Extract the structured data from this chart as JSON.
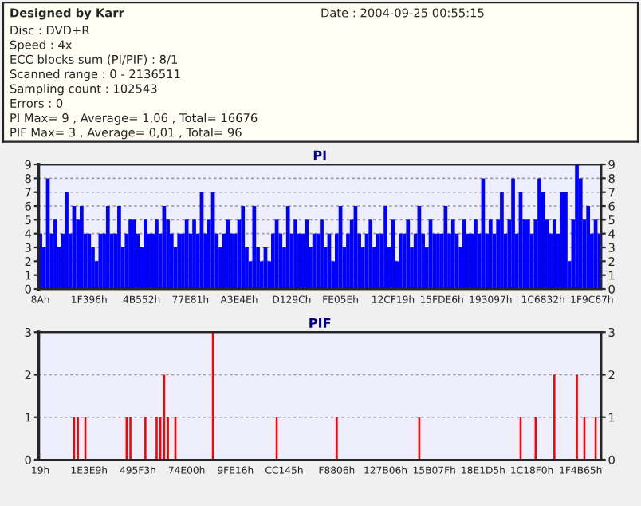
{
  "chart_data": [
    {
      "type": "other",
      "title": "Designed by Karr",
      "annotations": [
        "Date : 2004-09-25 00:55:15",
        "Disc : DVD+R",
        "Speed : 4x",
        "ECC blocks sum (PI/PIF) : 8/1",
        "Scanned range : 0 - 2136511",
        "Sampling count : 102543",
        "Errors : 0",
        "PI Max= 9 , Average= 1,06 , Total= 16676",
        "PIF Max= 3 , Average= 0,01 , Total= 96"
      ]
    },
    {
      "type": "bar",
      "title": "PI",
      "color": "#0000ff",
      "grid": "y",
      "ylim": [
        0,
        9
      ],
      "y2lim": [
        0,
        9
      ],
      "yticks": [
        0,
        1,
        2,
        3,
        4,
        5,
        6,
        7,
        8,
        9
      ],
      "y2ticks": [
        0,
        1,
        2,
        3,
        4,
        5,
        6,
        7,
        8,
        9
      ],
      "categories": [
        "8Ah",
        null,
        null,
        null,
        null,
        null,
        null,
        null,
        null,
        null,
        null,
        null,
        null,
        "1F396h",
        null,
        null,
        null,
        null,
        null,
        null,
        null,
        null,
        null,
        null,
        null,
        null,
        null,
        "4B552h",
        null,
        null,
        null,
        null,
        null,
        null,
        null,
        null,
        null,
        null,
        null,
        null,
        "77E81h",
        null,
        null,
        null,
        null,
        null,
        null,
        null,
        null,
        null,
        null,
        null,
        null,
        "A3E4Eh",
        null,
        null,
        null,
        null,
        null,
        null,
        null,
        null,
        null,
        null,
        null,
        null,
        null,
        "D129Ch",
        null,
        null,
        null,
        null,
        null,
        null,
        null,
        null,
        null,
        null,
        null,
        null,
        "FE05Eh",
        null,
        null,
        null,
        null,
        null,
        null,
        null,
        null,
        null,
        null,
        null,
        null,
        null,
        "12CF19h",
        null,
        null,
        null,
        null,
        null,
        null,
        null,
        null,
        null,
        null,
        null,
        null,
        "15FDE6h",
        null,
        null,
        null,
        null,
        null,
        null,
        null,
        null,
        null,
        null,
        null,
        null,
        "193097h",
        null,
        null,
        null,
        null,
        null,
        null,
        null,
        null,
        null,
        null,
        null,
        null,
        null,
        "1C6832h",
        null,
        null,
        null,
        null,
        null,
        null,
        null,
        null,
        null,
        null,
        null,
        null,
        "1F9C67h",
        null,
        null
      ],
      "values": [
        4,
        3,
        8,
        4,
        5,
        3,
        4,
        7,
        4,
        6,
        5,
        6,
        4,
        4,
        3,
        2,
        4,
        4,
        6,
        4,
        4,
        6,
        3,
        4,
        5,
        5,
        4,
        3,
        5,
        4,
        4,
        5,
        4,
        6,
        5,
        4,
        3,
        4,
        4,
        5,
        4,
        5,
        4,
        7,
        4,
        5,
        7,
        4,
        3,
        4,
        5,
        4,
        4,
        5,
        6,
        3,
        2,
        6,
        3,
        2,
        3,
        2,
        4,
        5,
        4,
        3,
        6,
        4,
        5,
        4,
        4,
        5,
        3,
        4,
        4,
        5,
        3,
        4,
        2,
        4,
        6,
        3,
        4,
        5,
        6,
        4,
        3,
        4,
        5,
        3,
        4,
        4,
        6,
        3,
        5,
        2,
        4,
        4,
        5,
        3,
        4,
        6,
        4,
        3,
        5,
        4,
        4,
        4,
        6,
        4,
        5,
        4,
        3,
        5,
        4,
        4,
        5,
        4,
        8,
        4,
        5,
        4,
        5,
        7,
        4,
        5,
        8,
        4,
        7,
        5,
        5,
        4,
        5,
        8,
        7,
        5,
        4,
        5,
        4,
        7,
        7,
        2,
        5,
        9,
        8,
        5,
        6,
        4,
        5,
        4
      ]
    },
    {
      "type": "bar",
      "title": "PIF",
      "color": "#ff0000",
      "grid": "y",
      "ylim": [
        0,
        3
      ],
      "y2lim": [
        0,
        3
      ],
      "yticks": [
        0,
        1,
        2,
        3
      ],
      "y2ticks": [
        0,
        1,
        2,
        3
      ],
      "categories": [
        "19h",
        null,
        null,
        null,
        null,
        null,
        null,
        null,
        null,
        null,
        null,
        null,
        null,
        "1E3E9h",
        null,
        null,
        null,
        null,
        null,
        null,
        null,
        null,
        null,
        null,
        null,
        null,
        "495F3h",
        null,
        null,
        null,
        null,
        null,
        null,
        null,
        null,
        null,
        null,
        null,
        null,
        "74E00h",
        null,
        null,
        null,
        null,
        null,
        null,
        null,
        null,
        null,
        null,
        null,
        null,
        "9FE16h",
        null,
        null,
        null,
        null,
        null,
        null,
        null,
        null,
        null,
        null,
        null,
        null,
        "CC145h",
        null,
        null,
        null,
        null,
        null,
        null,
        null,
        null,
        null,
        null,
        null,
        null,
        null,
        "F8806h",
        null,
        null,
        null,
        null,
        null,
        null,
        null,
        null,
        null,
        null,
        null,
        null,
        "127B06h",
        null,
        null,
        null,
        null,
        null,
        null,
        null,
        null,
        null,
        null,
        null,
        null,
        "15B07Fh",
        null,
        null,
        null,
        null,
        null,
        null,
        null,
        null,
        null,
        null,
        null,
        null,
        "18E1D5h",
        null,
        null,
        null,
        null,
        null,
        null,
        null,
        null,
        null,
        null,
        null,
        null,
        "1C18F0h",
        null,
        null,
        null,
        null,
        null,
        null,
        null,
        null,
        null,
        null,
        null,
        null,
        "1F4B65h",
        null,
        null,
        null,
        null,
        null
      ],
      "values": [
        0,
        0,
        0,
        0,
        0,
        0,
        0,
        0,
        0,
        1,
        1,
        0,
        1,
        0,
        0,
        0,
        0,
        0,
        0,
        0,
        0,
        0,
        0,
        1,
        1,
        0,
        0,
        0,
        1,
        0,
        0,
        1,
        1,
        2,
        1,
        0,
        1,
        0,
        0,
        0,
        0,
        0,
        0,
        0,
        0,
        0,
        3,
        0,
        0,
        0,
        0,
        0,
        0,
        0,
        0,
        0,
        0,
        0,
        0,
        0,
        0,
        0,
        0,
        1,
        0,
        0,
        0,
        0,
        0,
        0,
        0,
        0,
        0,
        0,
        0,
        0,
        0,
        0,
        0,
        1,
        0,
        0,
        0,
        0,
        0,
        0,
        0,
        0,
        0,
        0,
        0,
        0,
        0,
        0,
        0,
        0,
        0,
        0,
        0,
        0,
        0,
        1,
        0,
        0,
        0,
        0,
        0,
        0,
        0,
        0,
        0,
        0,
        0,
        0,
        0,
        0,
        0,
        0,
        0,
        0,
        0,
        0,
        0,
        0,
        0,
        0,
        0,
        0,
        1,
        0,
        0,
        0,
        1,
        0,
        0,
        0,
        0,
        2,
        0,
        0,
        0,
        0,
        0,
        2,
        0,
        1,
        0,
        0,
        1,
        0
      ]
    }
  ]
}
